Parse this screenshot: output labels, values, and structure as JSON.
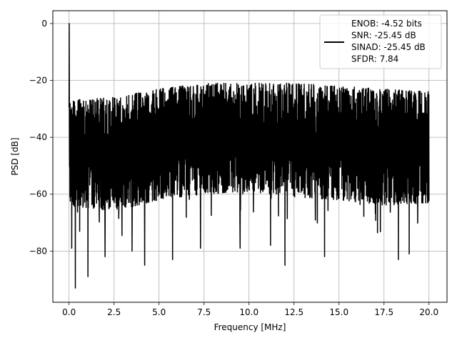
{
  "chart_data": {
    "type": "line",
    "title": "",
    "xlabel": "Frequency [MHz]",
    "ylabel": "PSD [dB]",
    "xlim": [
      -0.9,
      21.0
    ],
    "ylim": [
      -98,
      4.5
    ],
    "xticks": [
      0.0,
      2.5,
      5.0,
      7.5,
      10.0,
      12.5,
      15.0,
      17.5,
      20.0
    ],
    "xtick_labels": [
      "0.0",
      "2.5",
      "5.0",
      "7.5",
      "10.0",
      "12.5",
      "15.0",
      "17.5",
      "20.0"
    ],
    "yticks": [
      0,
      -20,
      -40,
      -60,
      -80
    ],
    "ytick_labels": [
      "0",
      "−20",
      "−40",
      "−60",
      "−80"
    ],
    "grid": true,
    "legend_position": "top-right",
    "legend_lines": [
      "ENOB: -4.52 bits",
      "SNR: -25.45 dB",
      "SINAD: -25.45 dB",
      "SFDR: 7.84"
    ],
    "series_color": "#000000",
    "series": [
      {
        "x_start": 0.0,
        "x_end": 20.0,
        "points": 2000,
        "dc_peak_value": 0.0,
        "upper_envelope": [
          [
            0.0,
            -27
          ],
          [
            2.5,
            -26
          ],
          [
            5.0,
            -23
          ],
          [
            7.5,
            -21
          ],
          [
            10.0,
            -21
          ],
          [
            12.5,
            -21
          ],
          [
            15.0,
            -22
          ],
          [
            17.5,
            -23
          ],
          [
            20.0,
            -24
          ]
        ],
        "lower_envelope": [
          [
            0.0,
            -64
          ],
          [
            2.5,
            -66
          ],
          [
            5.0,
            -62
          ],
          [
            7.5,
            -60
          ],
          [
            10.0,
            -59
          ],
          [
            12.5,
            -61
          ],
          [
            15.0,
            -62
          ],
          [
            17.5,
            -64
          ],
          [
            20.0,
            -63
          ]
        ],
        "deep_dips": [
          [
            0.35,
            -93
          ],
          [
            1.05,
            -89
          ],
          [
            0.15,
            -79
          ],
          [
            5.75,
            -83
          ],
          [
            4.2,
            -85
          ],
          [
            12.0,
            -85
          ],
          [
            14.2,
            -82
          ],
          [
            18.3,
            -83
          ],
          [
            18.9,
            -81
          ],
          [
            2.0,
            -82
          ],
          [
            3.5,
            -80
          ],
          [
            7.3,
            -79
          ],
          [
            9.5,
            -79
          ],
          [
            11.2,
            -78
          ]
        ]
      }
    ]
  }
}
